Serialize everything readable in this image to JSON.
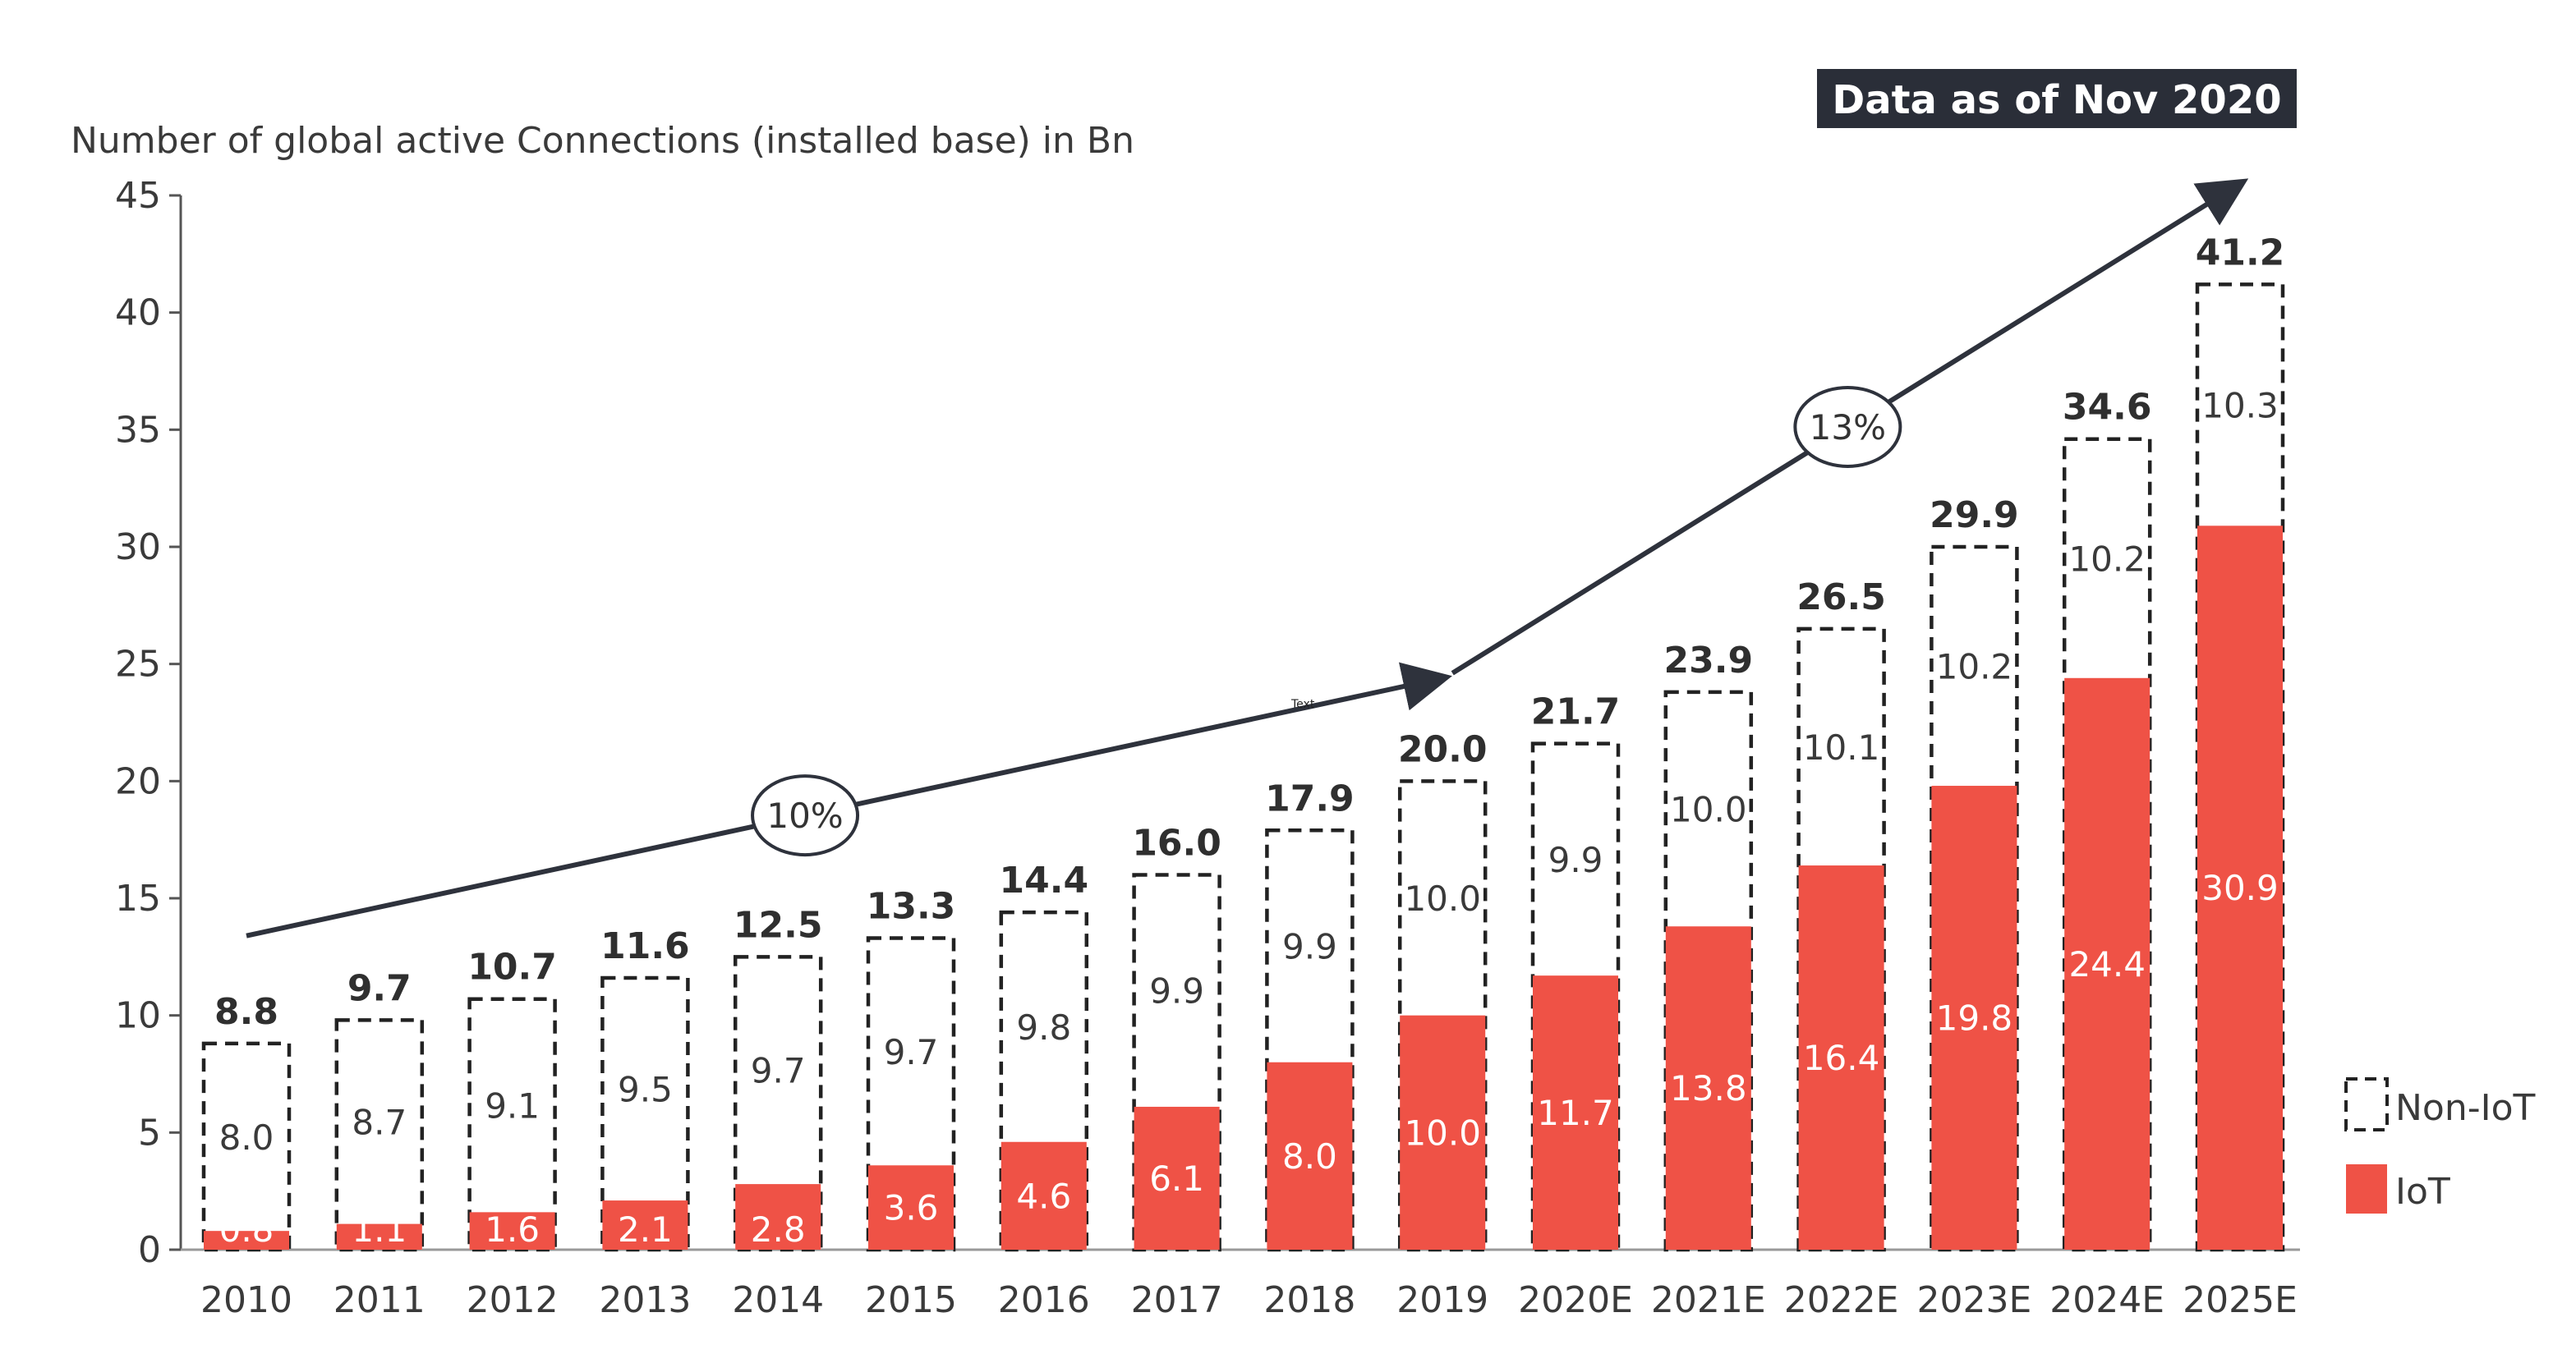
{
  "chart_data": {
    "type": "bar",
    "stacked": true,
    "ylabel": "Number of global active Connections (installed base) in Bn",
    "ylim": [
      0,
      45
    ],
    "yticks": [
      0,
      5,
      10,
      15,
      20,
      25,
      30,
      35,
      40,
      45
    ],
    "categories": [
      "2010",
      "2011",
      "2012",
      "2013",
      "2014",
      "2015",
      "2016",
      "2017",
      "2018",
      "2019",
      "2020E",
      "2021E",
      "2022E",
      "2023E",
      "2024E",
      "2025E"
    ],
    "series": [
      {
        "name": "IoT",
        "color": "#ef5246",
        "values": [
          0.8,
          1.1,
          1.6,
          2.1,
          2.8,
          3.6,
          4.6,
          6.1,
          8.0,
          10.0,
          11.7,
          13.8,
          16.4,
          19.8,
          24.4,
          30.9
        ]
      },
      {
        "name": "Non-IoT",
        "color": "#ffffff",
        "values": [
          8.0,
          8.7,
          9.1,
          9.5,
          9.7,
          9.7,
          9.8,
          9.9,
          9.9,
          10.0,
          9.9,
          10.0,
          10.1,
          10.2,
          10.2,
          10.3
        ]
      }
    ],
    "totals": [
      "8.8",
      "9.7",
      "10.7",
      "11.6",
      "12.5",
      "13.3",
      "14.4",
      "16.0",
      "17.9",
      "20.0",
      "21.7",
      "23.9",
      "26.5",
      "29.9",
      "34.6",
      "41.2"
    ],
    "iot_labels": [
      "0.8",
      "1.1",
      "1.6",
      "2.1",
      "2.8",
      "3.6",
      "4.6",
      "6.1",
      "8.0",
      "10.0",
      "11.7",
      "13.8",
      "16.4",
      "19.8",
      "24.4",
      "30.9"
    ],
    "noniot_labels": [
      "8.0",
      "8.7",
      "9.1",
      "9.5",
      "9.7",
      "9.7",
      "9.8",
      "9.9",
      "9.9",
      "10.0",
      "9.9",
      "10.0",
      "10.1",
      "10.2",
      "10.2",
      "10.3"
    ],
    "legend": [
      {
        "name": "Non-IoT",
        "style": "dashed"
      },
      {
        "name": "IoT",
        "style": "filled"
      }
    ],
    "legend_position": "bottom-right",
    "annotations": {
      "badge": "Data as of Nov 2020",
      "cagr_1": {
        "label": "10%",
        "from_index": 0,
        "to_index": 9,
        "from_y": 13.4,
        "to_y": 24.4
      },
      "cagr_2": {
        "label": "13%",
        "from_index": 9,
        "to_index": 15,
        "from_y": 24.4,
        "to_y": 45.5
      },
      "stray_text": "Text"
    }
  }
}
